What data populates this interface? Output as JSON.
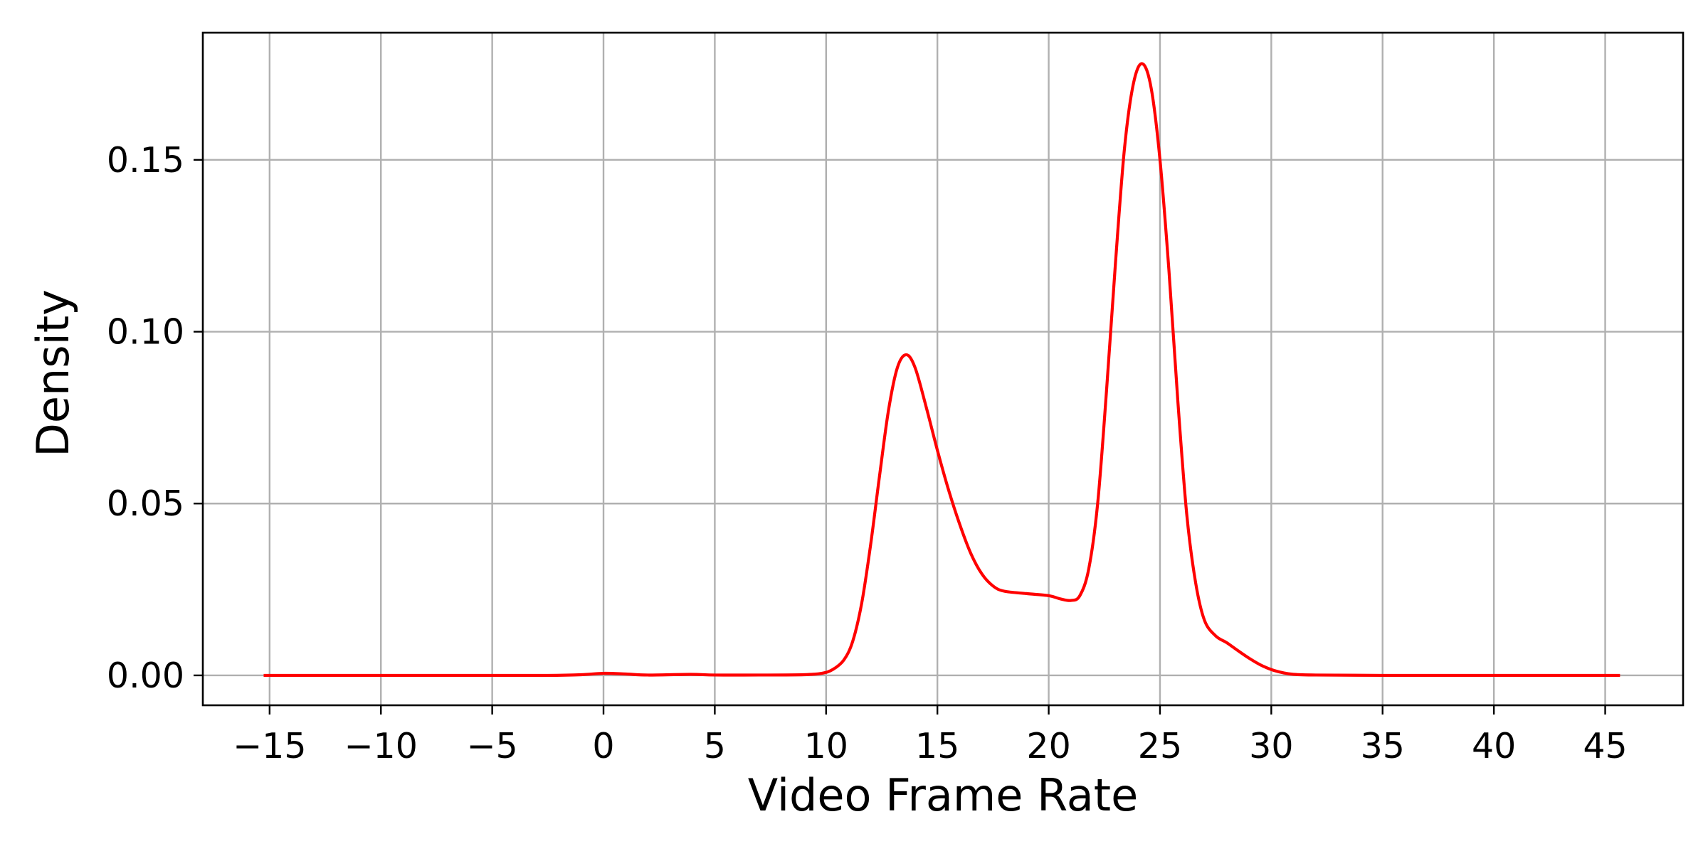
{
  "chart_data": {
    "type": "line",
    "title": "",
    "xlabel": "Video Frame Rate",
    "ylabel": "Density",
    "xlim": [
      -18,
      48.5
    ],
    "ylim": [
      -0.0087,
      0.187
    ],
    "xticks": [
      -15,
      -10,
      -5,
      0,
      5,
      10,
      15,
      20,
      25,
      30,
      35,
      40,
      45
    ],
    "xtick_labels": [
      "−15",
      "−10",
      "−5",
      "0",
      "5",
      "10",
      "15",
      "20",
      "25",
      "30",
      "35",
      "40",
      "45"
    ],
    "yticks": [
      0.0,
      0.05,
      0.1,
      0.15
    ],
    "ytick_labels": [
      "0.00",
      "0.05",
      "0.10",
      "0.15"
    ],
    "grid": true,
    "legend": false,
    "series": [
      {
        "color": "#ff0000",
        "points": [
          [
            -15.2,
            0.0
          ],
          [
            -10,
            0.0
          ],
          [
            -5,
            0.0
          ],
          [
            -2.5,
            0.0
          ],
          [
            -1,
            0.0002
          ],
          [
            0,
            0.0006
          ],
          [
            1,
            0.0004
          ],
          [
            2,
            0.0001
          ],
          [
            3.9,
            0.0003
          ],
          [
            5,
            0.0001
          ],
          [
            7,
            0.0001
          ],
          [
            9,
            0.0002
          ],
          [
            9.8,
            0.0006
          ],
          [
            10.3,
            0.0017
          ],
          [
            10.8,
            0.0045
          ],
          [
            11.2,
            0.01
          ],
          [
            11.6,
            0.021
          ],
          [
            12.0,
            0.038
          ],
          [
            12.4,
            0.058
          ],
          [
            12.8,
            0.077
          ],
          [
            13.2,
            0.0895
          ],
          [
            13.6,
            0.0933
          ],
          [
            14.0,
            0.0895
          ],
          [
            14.5,
            0.078
          ],
          [
            15.0,
            0.0655
          ],
          [
            15.5,
            0.054
          ],
          [
            16.0,
            0.044
          ],
          [
            16.5,
            0.0355
          ],
          [
            17.0,
            0.0295
          ],
          [
            17.5,
            0.026
          ],
          [
            18.0,
            0.0245
          ],
          [
            19.0,
            0.0238
          ],
          [
            20.0,
            0.0232
          ],
          [
            20.5,
            0.0223
          ],
          [
            21.0,
            0.0218
          ],
          [
            21.4,
            0.0232
          ],
          [
            21.8,
            0.031
          ],
          [
            22.2,
            0.05
          ],
          [
            22.6,
            0.083
          ],
          [
            23.0,
            0.12
          ],
          [
            23.4,
            0.153
          ],
          [
            23.8,
            0.172
          ],
          [
            24.2,
            0.178
          ],
          [
            24.6,
            0.171
          ],
          [
            25.0,
            0.15
          ],
          [
            25.4,
            0.118
          ],
          [
            25.8,
            0.08
          ],
          [
            26.2,
            0.047
          ],
          [
            26.6,
            0.027
          ],
          [
            27.0,
            0.016
          ],
          [
            27.5,
            0.0115
          ],
          [
            28.0,
            0.0095
          ],
          [
            28.5,
            0.0072
          ],
          [
            29.0,
            0.005
          ],
          [
            29.5,
            0.0031
          ],
          [
            30.0,
            0.0017
          ],
          [
            30.5,
            0.0008
          ],
          [
            31.0,
            0.0003
          ],
          [
            32.0,
            0.0001
          ],
          [
            35.0,
            0.0
          ],
          [
            40.0,
            0.0
          ],
          [
            45.6,
            0.0
          ]
        ]
      }
    ]
  }
}
